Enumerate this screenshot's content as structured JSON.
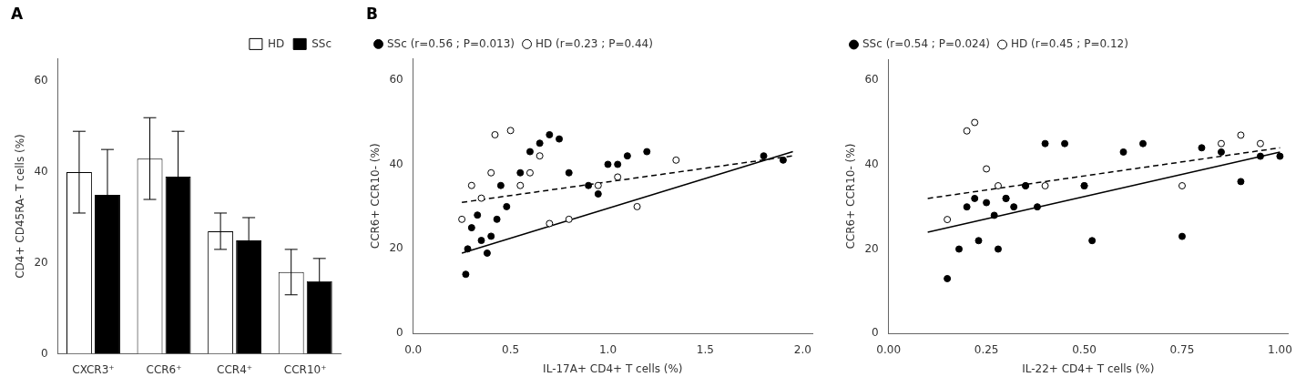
{
  "chart_data": [
    {
      "type": "bar",
      "title": "A",
      "categories": [
        "CXCR3⁺",
        "CCR6⁺",
        "CCR4⁺",
        "CCR10⁺"
      ],
      "ylabel": "CD4+ CD45RA- T cells (%)",
      "ylim": [
        0,
        65
      ],
      "yticks": [
        0,
        20,
        40,
        60
      ],
      "grid": false,
      "legend": "upper right",
      "series": [
        {
          "name": "HD",
          "color": "white",
          "values": [
            40,
            43,
            27,
            18
          ],
          "errors": [
            9,
            9,
            4,
            5
          ]
        },
        {
          "name": "SSc",
          "color": "black",
          "values": [
            35,
            39,
            25,
            16
          ],
          "errors": [
            10,
            10,
            5,
            5
          ]
        }
      ]
    },
    {
      "type": "scatter",
      "title": "B",
      "xlabel": "IL-17A+ CD4+ T cells (%)",
      "ylabel": "CCR6+ CCR10- (%)",
      "xlim": [
        0.0,
        2.05
      ],
      "xticks": [
        {
          "value": 0,
          "label": "0.0"
        },
        0.5,
        {
          "value": 1,
          "label": "1.0"
        },
        1.5,
        {
          "value": 2,
          "label": "2.0"
        }
      ],
      "ylim": [
        0,
        65
      ],
      "yticks": [
        0,
        20,
        40,
        60
      ],
      "grid": false,
      "legend": "upper left",
      "series": [
        {
          "name": "SSc (r=0.56 ; P=0.013)",
          "color": "black",
          "marker": "circle",
          "x": [
            0.27,
            0.28,
            0.3,
            0.33,
            0.35,
            0.38,
            0.4,
            0.43,
            0.45,
            0.48,
            0.55,
            0.6,
            0.65,
            0.7,
            0.75,
            0.8,
            0.9,
            0.95,
            1.0,
            1.05,
            1.1,
            1.2,
            1.8,
            1.9
          ],
          "values": [
            14,
            20,
            25,
            28,
            22,
            19,
            23,
            27,
            35,
            30,
            38,
            43,
            45,
            47,
            46,
            38,
            35,
            33,
            40,
            40,
            42,
            43,
            42,
            41
          ]
        },
        {
          "name": "HD (r=0.23 ; P=0.44)",
          "color": "white",
          "marker": "circle",
          "x": [
            0.25,
            0.3,
            0.35,
            0.4,
            0.42,
            0.5,
            0.55,
            0.6,
            0.65,
            0.7,
            0.8,
            0.95,
            1.05,
            1.15,
            1.35
          ],
          "values": [
            27,
            35,
            32,
            38,
            47,
            48,
            35,
            38,
            42,
            26,
            27,
            35,
            37,
            30,
            41
          ]
        },
        {
          "type": "line",
          "line_style": "solid",
          "color": "black",
          "x": [
            0.25,
            1.95
          ],
          "values": [
            19,
            43
          ]
        },
        {
          "type": "line",
          "line_style": "dashed",
          "color": "black",
          "x": [
            0.25,
            1.95
          ],
          "values": [
            31,
            42
          ]
        }
      ]
    },
    {
      "type": "scatter",
      "xlabel": "IL-22+ CD4+ T cells (%)",
      "ylabel": "CCR6+ CCR10- (%)",
      "xlim": [
        0.0,
        1.02
      ],
      "xticks": [
        {
          "value": 0,
          "label": "0.00"
        },
        0.25,
        {
          "value": 0.5,
          "label": "0.50"
        },
        0.75,
        {
          "value": 1,
          "label": "1.00"
        }
      ],
      "ylim": [
        0,
        65
      ],
      "yticks": [
        0,
        20,
        40,
        60
      ],
      "grid": false,
      "legend": "upper left",
      "series": [
        {
          "name": "SSc (r=0.54 ; P=0.024)",
          "color": "black",
          "marker": "circle",
          "x": [
            0.15,
            0.18,
            0.2,
            0.22,
            0.23,
            0.25,
            0.27,
            0.28,
            0.3,
            0.32,
            0.35,
            0.38,
            0.4,
            0.45,
            0.5,
            0.52,
            0.6,
            0.65,
            0.75,
            0.8,
            0.85,
            0.9,
            0.95,
            1.0
          ],
          "values": [
            13,
            20,
            30,
            32,
            22,
            31,
            28,
            20,
            32,
            30,
            35,
            30,
            45,
            45,
            35,
            22,
            43,
            45,
            23,
            44,
            43,
            36,
            42,
            42
          ]
        },
        {
          "name": "HD (r=0.45 ; P=0.12)",
          "color": "white",
          "marker": "circle",
          "x": [
            0.15,
            0.2,
            0.22,
            0.25,
            0.28,
            0.3,
            0.35,
            0.4,
            0.5,
            0.75,
            0.85,
            0.9,
            0.95
          ],
          "values": [
            27,
            48,
            50,
            39,
            35,
            32,
            35,
            35,
            35,
            35,
            45,
            47,
            45
          ]
        },
        {
          "type": "line",
          "line_style": "solid",
          "color": "black",
          "x": [
            0.1,
            1.0
          ],
          "values": [
            24,
            43
          ]
        },
        {
          "type": "line",
          "line_style": "dashed",
          "color": "black",
          "x": [
            0.1,
            1.0
          ],
          "values": [
            32,
            44
          ]
        }
      ]
    }
  ]
}
